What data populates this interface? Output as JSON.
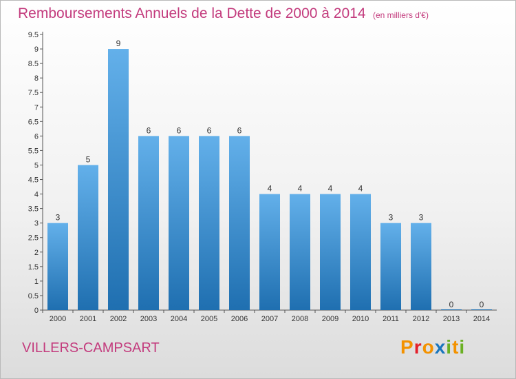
{
  "header": {
    "title": "Remboursements Annuels de la Dette de 2000 à 2014",
    "unit": "(en milliers d'€)"
  },
  "footer": {
    "town": "VILLERS-CAMPSART",
    "logo_letters": [
      "P",
      "r",
      "o",
      "x",
      "i",
      "t",
      "i"
    ]
  },
  "colors": {
    "bar_light": "#63b0ea",
    "bar_dark": "#1f6fb0",
    "title": "#c33b7d",
    "logo": [
      "#f39200",
      "#e3202a",
      "#f39200",
      "#1a76bd",
      "#6ab023",
      "#f39200",
      "#6ab023"
    ]
  },
  "chart_data": {
    "type": "bar",
    "categories": [
      "2000",
      "2001",
      "2002",
      "2003",
      "2004",
      "2005",
      "2006",
      "2007",
      "2008",
      "2009",
      "2010",
      "2011",
      "2012",
      "2013",
      "2014"
    ],
    "values": [
      3,
      5,
      9,
      6,
      6,
      6,
      6,
      4,
      4,
      4,
      4,
      3,
      3,
      0,
      0
    ],
    "title": "Remboursements Annuels de la Dette de 2000 à 2014",
    "xlabel": "",
    "ylabel": "",
    "ylim": [
      0,
      9.5
    ],
    "yticks": [
      "0",
      "0.5",
      "1",
      "1.5",
      "2",
      "2.5",
      "3",
      "3.5",
      "4",
      "4.5",
      "5",
      "5.5",
      "6",
      "6.5",
      "7",
      "7.5",
      "8",
      "8.5",
      "9",
      "9.5"
    ],
    "grid": false,
    "legend": "none",
    "data_labels": [
      "3",
      "5",
      "9",
      "6",
      "6",
      "6",
      "6",
      "4",
      "4",
      "4",
      "4",
      "3",
      "3",
      "0",
      "0"
    ]
  }
}
